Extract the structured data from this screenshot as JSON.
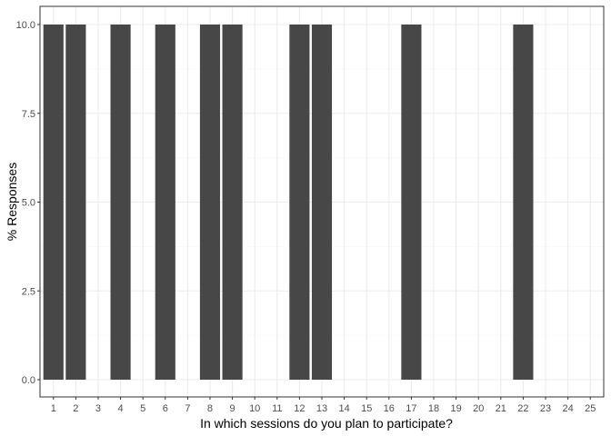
{
  "chart_data": {
    "type": "bar",
    "title": "",
    "xlabel": "In which sessions do you plan to participate?",
    "ylabel": "% Responses",
    "categories": [
      "1",
      "2",
      "3",
      "4",
      "5",
      "6",
      "7",
      "8",
      "9",
      "10",
      "11",
      "12",
      "13",
      "14",
      "15",
      "16",
      "17",
      "18",
      "19",
      "20",
      "21",
      "22",
      "23",
      "24",
      "25"
    ],
    "values": [
      10,
      10,
      0,
      10,
      0,
      10,
      0,
      10,
      10,
      0,
      0,
      10,
      10,
      0,
      0,
      0,
      10,
      0,
      0,
      0,
      0,
      10,
      0,
      0,
      0
    ],
    "ylim": [
      0,
      10.5
    ],
    "yticks": [
      0,
      2.5,
      5,
      7.5,
      10
    ],
    "ytick_labels": [
      "0.0",
      "2.5",
      "5.0",
      "7.5",
      "10.0"
    ],
    "grid": true,
    "colors": {
      "bar": "#474747",
      "panel_border": "#333333",
      "grid_major": "#ebebeb",
      "grid_minor": "#f5f5f5"
    }
  }
}
